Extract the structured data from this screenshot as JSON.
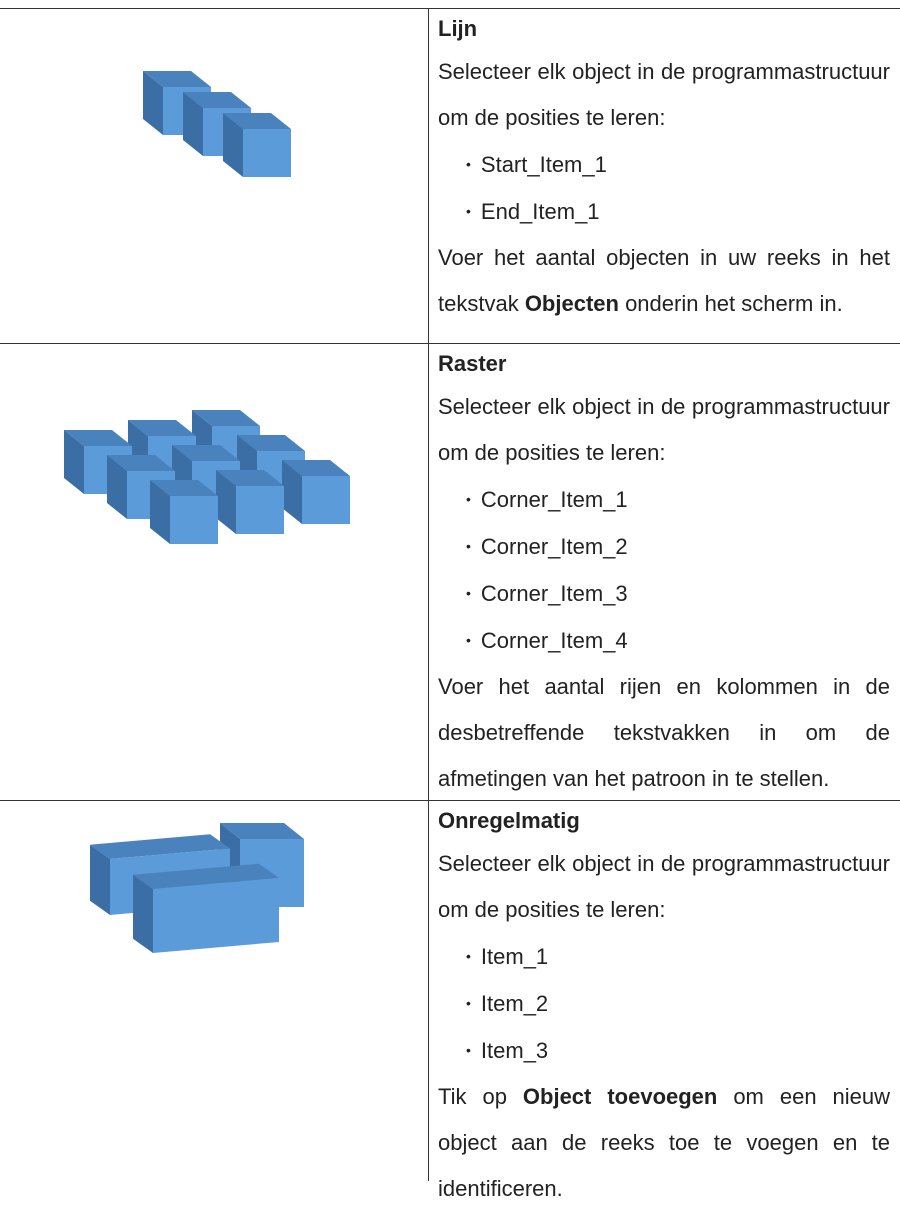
{
  "table": {
    "rows": [
      {
        "title": "Lijn",
        "intro": "Selecteer elk object in de programma­structuur om de posities te leren:",
        "items": [
          "Start_Item_1",
          "End_Item_1"
        ],
        "outro": [
          {
            "text": "Voer het aantal objecten in uw reeks in het tekstvak ",
            "bold": false
          },
          {
            "text": "Objecten",
            "bold": true
          },
          {
            "text": " onderin het scherm in.",
            "bold": false
          }
        ]
      },
      {
        "title": "Raster",
        "intro": "Selecteer elk object in de programma­structuur om de posities te leren:",
        "items": [
          "Corner_Item_1",
          "Corner_Item_2",
          "Corner_Item_3",
          "Corner_Item_4"
        ],
        "outro": [
          {
            "text": "Voer het aantal rijen en kolommen in de desbetreffende tekstvakken in om de afmetingen van het patroon in te stel­len.",
            "bold": false
          }
        ]
      },
      {
        "title": "Onregelmatig",
        "intro": "Selecteer elk object in de programma­structuur om de posities te leren:",
        "items": [
          "Item_1",
          "Item_2",
          "Item_3"
        ],
        "outro": [
          {
            "text": "Tik op ",
            "bold": false
          },
          {
            "text": "Object toevoegen",
            "bold": true
          },
          {
            "text": " om een nieuw object aan de reeks toe te voegen en te identificeren.",
            "bold": false
          }
        ]
      }
    ]
  }
}
